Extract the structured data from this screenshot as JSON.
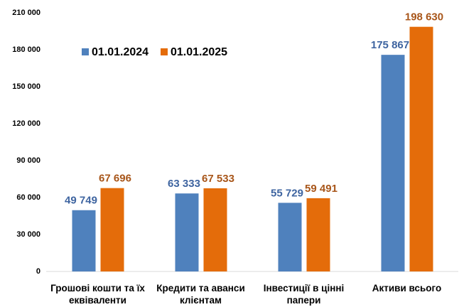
{
  "chart_data": {
    "type": "bar",
    "categories": [
      "Грошові кошти та їх еквіваленти",
      "Кредити та аванси клієнтам",
      "Інвестиції в цінні папери",
      "Активи всього"
    ],
    "series": [
      {
        "name": "01.01.2024",
        "color": "#4f81bd",
        "values": [
          49749,
          63333,
          55729,
          175867
        ],
        "value_labels": [
          "49 749",
          "63 333",
          "55 729",
          "175 867"
        ]
      },
      {
        "name": "01.01.2025",
        "color": "#e46c0a",
        "values": [
          67696,
          67533,
          59491,
          198630
        ],
        "value_labels": [
          "67 696",
          "67 533",
          "59 491",
          "198 630"
        ]
      }
    ],
    "ylim": [
      0,
      210000
    ],
    "yticks": [
      0,
      {
        "value": 30000,
        "label": "30 000"
      },
      {
        "value": 60000,
        "label": "60 000"
      },
      {
        "value": 90000,
        "label": "90 000"
      },
      {
        "value": 120000,
        "label": "120 000"
      },
      {
        "value": 150000,
        "label": "150 000"
      },
      {
        "value": 180000,
        "label": "180 000"
      },
      {
        "value": 210000,
        "label": "210 000"
      }
    ],
    "grid": false,
    "legend": "upper left"
  }
}
